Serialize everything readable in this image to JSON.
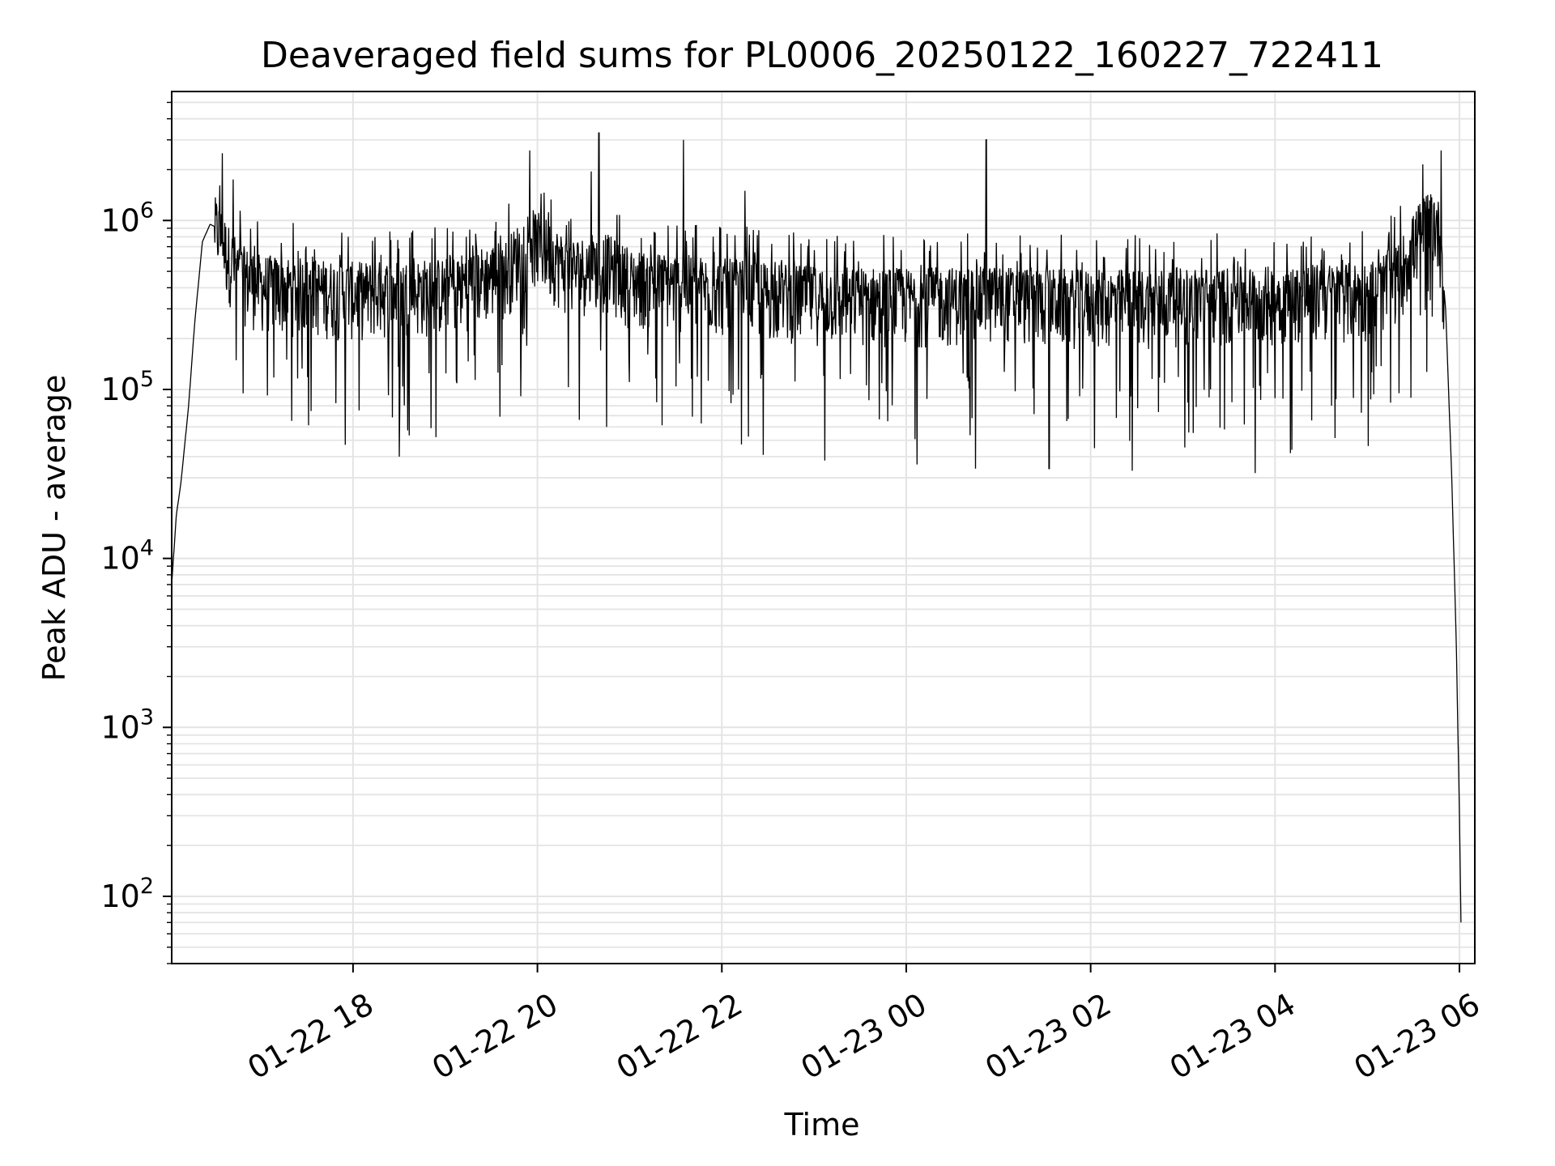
{
  "chart_data": {
    "type": "line",
    "title": "Deaveraged field sums for PL0006_20250122_160227_722411",
    "xlabel": "Time",
    "ylabel": "Peak ADU - average",
    "x_scale": "time",
    "y_scale": "log",
    "xlim": [
      "2025-01-22 16:02",
      "2025-01-23 06:10"
    ],
    "ylim": [
      40,
      5800000
    ],
    "grid": true,
    "grid_minor": true,
    "line_color": "#000000",
    "x_ticks": [
      {
        "value": "2025-01-22 18:00",
        "label": "01-22 18"
      },
      {
        "value": "2025-01-22 20:00",
        "label": "01-22 20"
      },
      {
        "value": "2025-01-22 22:00",
        "label": "01-22 22"
      },
      {
        "value": "2025-01-23 00:00",
        "label": "01-23 00"
      },
      {
        "value": "2025-01-23 02:00",
        "label": "01-23 02"
      },
      {
        "value": "2025-01-23 04:00",
        "label": "01-23 04"
      },
      {
        "value": "2025-01-23 06:00",
        "label": "01-23 06"
      }
    ],
    "y_ticks": [
      {
        "value": 100,
        "base": "10",
        "exp": "2"
      },
      {
        "value": 1000,
        "base": "10",
        "exp": "3"
      },
      {
        "value": 10000,
        "base": "10",
        "exp": "4"
      },
      {
        "value": 100000,
        "base": "10",
        "exp": "5"
      },
      {
        "value": 1000000,
        "base": "10",
        "exp": "6"
      }
    ],
    "series": [
      {
        "envelope": [
          [
            "2025-01-22 16:02",
            7000
          ],
          [
            "2025-01-22 16:05",
            18000
          ],
          [
            "2025-01-22 16:08",
            28000
          ],
          [
            "2025-01-22 16:13",
            80000
          ],
          [
            "2025-01-22 16:17",
            250000
          ],
          [
            "2025-01-22 16:22",
            750000
          ],
          [
            "2025-01-22 16:27",
            950000
          ],
          [
            "2025-01-22 16:32",
            900000
          ],
          [
            "2025-01-22 16:38",
            650000
          ],
          [
            "2025-01-22 16:47",
            480000
          ],
          [
            "2025-01-22 17:00",
            420000
          ],
          [
            "2025-01-22 18:00",
            380000
          ],
          [
            "2025-01-22 19:00",
            400000
          ],
          [
            "2025-01-22 19:40",
            520000
          ],
          [
            "2025-01-22 19:55",
            800000
          ],
          [
            "2025-01-22 20:05",
            700000
          ],
          [
            "2025-01-22 20:20",
            520000
          ],
          [
            "2025-01-22 20:45",
            560000
          ],
          [
            "2025-01-22 21:00",
            450000
          ],
          [
            "2025-01-22 22:00",
            400000
          ],
          [
            "2025-01-22 23:00",
            360000
          ],
          [
            "2025-01-23 00:00",
            350000
          ],
          [
            "2025-01-23 01:00",
            360000
          ],
          [
            "2025-01-23 02:00",
            340000
          ],
          [
            "2025-01-23 03:00",
            350000
          ],
          [
            "2025-01-23 04:00",
            360000
          ],
          [
            "2025-01-23 05:00",
            380000
          ],
          [
            "2025-01-23 05:20",
            480000
          ],
          [
            "2025-01-23 05:35",
            900000
          ],
          [
            "2025-01-23 05:42",
            1100000
          ],
          [
            "2025-01-23 05:47",
            850000
          ],
          [
            "2025-01-23 05:51",
            300000
          ],
          [
            "2025-01-23 05:55",
            30000
          ],
          [
            "2025-01-23 05:58",
            3000
          ],
          [
            "2025-01-23 06:00",
            300
          ],
          [
            "2025-01-23 06:01",
            70
          ]
        ],
        "spikes": [
          [
            "2025-01-22 16:35",
            2500000
          ],
          [
            "2025-01-22 16:42",
            1750000
          ],
          [
            "2025-01-22 17:55",
            47000
          ],
          [
            "2025-01-22 18:30",
            40000
          ],
          [
            "2025-01-22 19:55",
            2600000
          ],
          [
            "2025-01-22 20:40",
            3300000
          ],
          [
            "2025-01-22 20:35",
            1950000
          ],
          [
            "2025-01-22 20:45",
            60000
          ],
          [
            "2025-01-22 21:35",
            3000000
          ],
          [
            "2025-01-22 22:15",
            1500000
          ],
          [
            "2025-01-22 22:27",
            41000
          ],
          [
            "2025-01-22 23:07",
            38000
          ],
          [
            "2025-01-23 00:07",
            36000
          ],
          [
            "2025-01-23 00:45",
            34000
          ],
          [
            "2025-01-23 00:52",
            3000000
          ],
          [
            "2025-01-23 01:33",
            34000
          ],
          [
            "2025-01-23 02:27",
            33000
          ],
          [
            "2025-01-23 03:47",
            32000
          ],
          [
            "2025-01-23 04:10",
            42000
          ],
          [
            "2025-01-23 05:48",
            2600000
          ]
        ]
      }
    ]
  }
}
